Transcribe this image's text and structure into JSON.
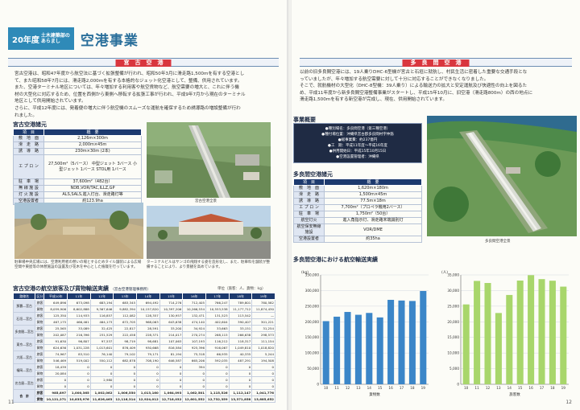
{
  "header": {
    "year": "20年度",
    "sub": "土木建築部のあらまし",
    "title": "空港事業"
  },
  "miyako": {
    "band": "宮　古　空　港",
    "para": [
      "宮古空港は、昭和47年度から航空法に基づく拡張整備が行われ、昭和50年3月に滑走路1,500mを有する空港とし",
      "て、また昭和58年7月には、滑走路2,000mを有する本格的なジェット化空港として、整備、供用されています。",
      "また、空港ターミナル地区については、年々増加する利用客や航空貨物など、航空需要の増大と、これに伴う機",
      "材の大型化に対応するため、位置を西側から東側へ移転する拡張工事が行われ、平成9年7月から現在のターミナル",
      "地区として供用開始されています。",
      "さらに、平成12年度には、発着便の増大に伴う航空機のスムーズな運航を確保するため誘導路の増設整備が行わ",
      "れました。"
    ],
    "spec_title": "宮古空港諸元",
    "spec_head": [
      "項　目",
      "概　要"
    ],
    "spec": [
      [
        "敷　地　面",
        "2,126m×300m"
      ],
      [
        "滑　走　路",
        "2,000m×45m"
      ],
      [
        "誘　導　路",
        "230m×30m (2本)"
      ],
      [
        "エ プ ロ ン",
        "27,500m²（5バース） 中型ジェット 3バース 小型ジェット 1バース STOL用 1バース"
      ],
      [
        "駐　車　場",
        "37,600m²（482台）"
      ],
      [
        "無 線 施 設",
        "NDB,VOR/TAC,ILLZ,GP"
      ],
      [
        "灯 火 施 設",
        "ALS,SALS,進入灯台、滑走路灯等"
      ],
      [
        "空港設置者",
        "約123.9ha"
      ]
    ],
    "photo_caption_right": "宮古空港全景",
    "photo_caption_1": "駐車場中央広場には、空港利用者の憩いの場とするためタイル舗装による広場空間や東屋等の休憩施設の設置及び花木を中心とした植栽を行っています。",
    "photo_caption_2": "ターミナルビルはサンゴの飛翔する姿を造形化し、また、駐車料を舗装が整備することにより、より景観を高めています。",
    "traffic_title": "宮古空港の航空旅客及び貨物輸送実績",
    "traffic_subtitle": "（宮古空港管理事務所）",
    "traffic_unit": "単位（旅客：人、貨物：kg）",
    "traffic_head": [
      "路線名",
      "区分",
      "平成10年",
      "11年",
      "12年",
      "13年",
      "14年",
      "15年",
      "16年",
      "17年",
      "18年",
      "19年"
    ],
    "traffic_rows": [
      [
        "那覇―宮古",
        "旅客",
        "649,896",
        "673,098",
        "683,194",
        "683,345",
        "694,492",
        "714,276",
        "712,405",
        "766,247",
        "789,801",
        "780,582"
      ],
      [
        "",
        "貨物",
        "8,059,906",
        "8,602,888",
        "9,367,646",
        "9,882,394",
        "10,157,820",
        "10,397,206",
        "10,266,534",
        "10,553,538",
        "11,177,712",
        "11,874,430"
      ],
      [
        "石垣―宮古",
        "旅客",
        "125,350",
        "114,933",
        "116,857",
        "112,082",
        "128,357",
        "130,957",
        "132,471",
        "131,523",
        "113,542",
        "—"
      ],
      [
        "",
        "貨物",
        "467,175",
        "466,461",
        "464,173",
        "672,705",
        "968,063",
        "643,638",
        "474,140",
        "402,604",
        "390,407",
        "301,221"
      ],
      [
        "多良間―宮古",
        "旅客",
        "25,565",
        "33,089",
        "32,425",
        "22,817",
        "28,591",
        "33,200",
        "34,924",
        "33,663",
        "33,151",
        "31,254"
      ],
      [
        "",
        "貨物",
        "202,087",
        "216,396",
        "231,529",
        "222,458",
        "228,371",
        "214,017",
        "270,274",
        "268,115",
        "266,638",
        "298,573"
      ],
      [
        "東京―宮古",
        "旅客",
        "91,630",
        "96,807",
        "97,537",
        "98,719",
        "98,681",
        "107,063",
        "107,193",
        "116,212",
        "118,317",
        "111,154"
      ],
      [
        "",
        "貨物",
        "624,636",
        "1,031,228",
        "1,013,601",
        "876,409",
        "930,668",
        "816,584",
        "925,396",
        "916,067",
        "1,049,810",
        "1,018,820"
      ],
      [
        "大阪―宮古",
        "旅客",
        "74,967",
        "83,510",
        "76,140",
        "79,102",
        "79,171",
        "81,194",
        "75,318",
        "66,935",
        "40,335",
        "5,244"
      ],
      [
        "",
        "貨物",
        "546,469",
        "519,002",
        "550,112",
        "682,878",
        "708,190",
        "646,587",
        "665,206",
        "592,035",
        "487,291",
        "194,508"
      ],
      [
        "福岡―宮古",
        "旅客",
        "18,439",
        "0",
        "0",
        "0",
        "0",
        "0",
        "394",
        "0",
        "0",
        "0"
      ],
      [
        "",
        "貨物",
        "20,084",
        "0",
        "0",
        "0",
        "0",
        "0",
        "0",
        "0",
        "0",
        "0"
      ],
      [
        "名古屋―宮古",
        "旅客",
        "0",
        "0",
        "2,980",
        "0",
        "0",
        "0",
        "0",
        "0",
        "0",
        "0"
      ],
      [
        "",
        "貨物",
        "0",
        "0",
        "0",
        "0",
        "0",
        "0",
        "0",
        "0",
        "0",
        "0"
      ],
      [
        "合　計",
        "旅客",
        "985,897",
        "1,000,365",
        "1,002,062",
        "1,006,550",
        "1,013,160",
        "1,064,093",
        "1,062,501",
        "1,115,526",
        "1,112,147",
        "1,041,776"
      ],
      [
        "",
        "貨物",
        "10,121,271",
        "10,835,976",
        "11,626,463",
        "12,116,314",
        "12,924,012",
        "12,718,032",
        "12,601,552",
        "12,732,359",
        "13,371,858",
        "13,685,652"
      ]
    ],
    "page_number": "11"
  },
  "tarama": {
    "band": "多　良　間　空　港",
    "para": [
      "以前の旧多良間空港には、19人乗りDHC-6型機が宮古と石垣に就航し、村民生活に密着した重要な交通手段とな",
      "っていましたが、年々増加する航空需要に対して十分に対応することができなくなりました。",
      "そこで、就航機材の大型化（DHC-8型機：39人乗り）による輸送力の拡大と安定運航及び快適性の向上を図るた",
      "め、平成11年度から新多良間空港整備事業がスタートし、平成15年10月に、旧空港（滑走路800m）の西の地点に",
      "滑走路1,500mを有する新空港が完成し、現在、供用開始されています。"
    ],
    "overview_title": "事業概要",
    "overview": [
      "●種別場名：多良間空港（第三種空港）",
      "●種付場位置：沖縄県宮古郡多良間村字仲筋",
      "●総事業費：約237億円",
      "●工　期：平成11年度〜平成16年度",
      "●供用開始日：平成15年10月15日",
      "●空港設置管理者：沖縄県"
    ],
    "spec_title": "多良間空港諸元",
    "spec_head": [
      "項　目",
      "概　要"
    ],
    "spec": [
      [
        "敷　地　面",
        "1,620m×180m"
      ],
      [
        "滑　走　路",
        "1,500m×45m"
      ],
      [
        "誘　導　路",
        "77.5m×18m"
      ],
      [
        "エ プ ロ ン",
        "7,700m²（プロペラ機用2バース）"
      ],
      [
        "駐　車　場",
        "1,750m²（50台）"
      ],
      [
        "航空灯火",
        "進入角指示灯、滑走路末端識別灯"
      ],
      [
        "航空保安無線施設",
        "VOR/DME"
      ],
      [
        "空港設置者",
        "約35ha"
      ]
    ],
    "photo_caption": "多良間空港全景",
    "chart_title": "多良間空港における航空輸送実績",
    "page_number": "12"
  },
  "chart_data": [
    {
      "type": "bar",
      "title": "",
      "xlabel": "貨物数",
      "ylabel": "(kg)",
      "categories": [
        "10",
        "11",
        "12",
        "13",
        "14",
        "15",
        "16",
        "17",
        "18",
        "19"
      ],
      "values": [
        202087,
        216396,
        231529,
        222458,
        228371,
        214017,
        270274,
        268115,
        266638,
        298573
      ],
      "yticks": [
        "0",
        "50,000",
        "100,000",
        "150,000",
        "200,000",
        "250,000",
        "300,000",
        "350,000"
      ],
      "ylim": [
        0,
        350000
      ],
      "color": "#3b86c8"
    },
    {
      "type": "bar",
      "title": "",
      "xlabel": "旅客数",
      "ylabel": "(人)",
      "categories": [
        "10",
        "11",
        "12",
        "13",
        "14",
        "15",
        "16",
        "17",
        "18",
        "19"
      ],
      "values": [
        25565,
        33089,
        32425,
        22817,
        28591,
        33200,
        34924,
        33663,
        33151,
        31254
      ],
      "yticks": [
        "0",
        "5,000",
        "10,000",
        "15,000",
        "20,000",
        "25,000",
        "30,000",
        "35,000"
      ],
      "ylim": [
        0,
        35000
      ],
      "color": "#a8d66b"
    }
  ]
}
